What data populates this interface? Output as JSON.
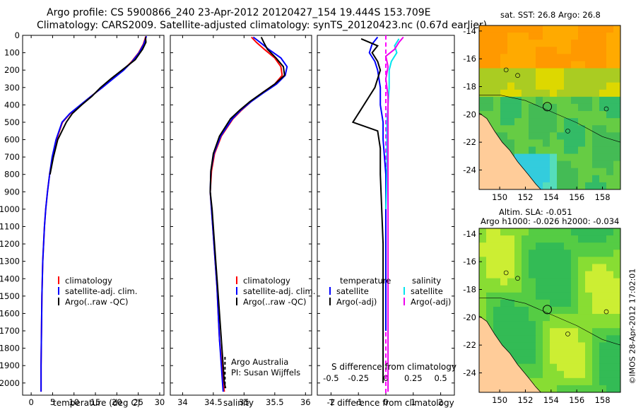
{
  "header": {
    "line1": "Argo profile: CS 5900866_240 23-Apr-2012 20120427_154 19.444S 153.709E",
    "line2": "Climatology: CARS2009. Satellite-adjusted climatology: synTS_20120423.nc (0.67d earlier)"
  },
  "colors": {
    "climatology": "#ff0000",
    "satellite": "#0000ff",
    "argo": "#000000",
    "sal_satellite": "#00e5ee",
    "sal_argo": "#ee00ee"
  },
  "depth_axis": {
    "ticks": [
      "0",
      "100",
      "200",
      "300",
      "400",
      "500",
      "600",
      "700",
      "800",
      "900",
      "1000",
      "1100",
      "1200",
      "1300",
      "1400",
      "1500",
      "1600",
      "1700",
      "1800",
      "1900",
      "2000"
    ]
  },
  "chart_data": [
    {
      "type": "line",
      "id": "temperature",
      "xlabel": "temperature (deg C)",
      "ylabel": "depth",
      "xlim": [
        -2,
        31
      ],
      "ylim": [
        2070,
        0
      ],
      "xticks": [
        "0",
        "5",
        "10",
        "15",
        "20",
        "25",
        "30"
      ],
      "legend": [
        "climatology",
        "satellite-adj. clim.",
        "Argo(..raw -QC)"
      ],
      "series": [
        {
          "name": "climatology",
          "x": [
            26.8,
            26.2,
            25.1,
            23.5,
            21.5,
            19.0,
            16.6,
            14.0,
            11.6,
            9.1,
            7.3,
            5.9,
            5.0,
            4.3,
            3.8,
            3.4,
            3.1,
            2.9,
            2.7,
            2.6,
            2.5,
            2.4,
            2.3,
            2.3
          ],
          "y": [
            5,
            50,
            100,
            150,
            200,
            250,
            300,
            350,
            400,
            450,
            500,
            600,
            700,
            800,
            900,
            1000,
            1100,
            1200,
            1300,
            1400,
            1500,
            1700,
            1900,
            2050
          ]
        },
        {
          "name": "satellite-adj. clim.",
          "x": [
            26.9,
            26.3,
            25.2,
            23.6,
            21.6,
            19.1,
            16.6,
            14.0,
            11.5,
            9.0,
            7.2,
            5.8,
            4.9,
            4.3,
            3.8,
            3.4,
            3.1,
            2.9,
            2.7,
            2.6,
            2.5,
            2.4,
            2.3,
            2.3
          ],
          "y": [
            5,
            50,
            100,
            150,
            200,
            250,
            300,
            350,
            400,
            450,
            500,
            600,
            700,
            800,
            900,
            1000,
            1100,
            1200,
            1300,
            1400,
            1500,
            1700,
            1900,
            2050
          ]
        },
        {
          "name": "Argo(..raw -QC)",
          "x": [
            26.7,
            26.8,
            26.0,
            24.3,
            21.2,
            18.6,
            16.2,
            14.2,
            11.8,
            9.6,
            8.2,
            6.2,
            5.2,
            4.4
          ],
          "y": [
            10,
            40,
            80,
            140,
            200,
            250,
            300,
            350,
            400,
            450,
            500,
            600,
            700,
            800
          ]
        }
      ]
    },
    {
      "type": "line",
      "id": "salinity",
      "xlabel": "salinity",
      "xlim": [
        33.8,
        36.1
      ],
      "ylim": [
        2070,
        0
      ],
      "xticks": [
        "34",
        "34.5",
        "35",
        "35.5",
        "36"
      ],
      "legend": [
        "climatology",
        "satellite-adj. clim.",
        "Argo(..raw -QC)"
      ],
      "annotations": [
        "Argo Australia",
        "PI: Susan Wijffels"
      ],
      "series": [
        {
          "name": "climatology",
          "x": [
            35.12,
            35.2,
            35.33,
            35.5,
            35.6,
            35.62,
            35.5,
            35.3,
            35.12,
            34.96,
            34.82,
            34.63,
            34.52,
            34.47,
            34.45,
            34.47,
            34.5,
            34.53,
            34.56,
            34.58,
            34.6,
            34.64,
            34.66,
            34.68
          ],
          "y": [
            10,
            40,
            80,
            130,
            180,
            230,
            280,
            330,
            380,
            430,
            480,
            580,
            680,
            780,
            900,
            1000,
            1150,
            1300,
            1450,
            1600,
            1750,
            1900,
            2000,
            2050
          ]
        },
        {
          "name": "satellite-adj. clim.",
          "x": [
            35.15,
            35.26,
            35.4,
            35.6,
            35.7,
            35.67,
            35.53,
            35.32,
            35.12,
            34.95,
            34.81,
            34.62,
            34.51,
            34.46,
            34.45,
            34.47,
            34.5,
            34.53,
            34.56,
            34.58,
            34.6,
            34.63,
            34.65,
            34.66
          ],
          "y": [
            10,
            40,
            80,
            130,
            180,
            230,
            280,
            330,
            380,
            430,
            480,
            580,
            680,
            780,
            900,
            1000,
            1150,
            1300,
            1450,
            1600,
            1750,
            1900,
            2000,
            2050
          ]
        },
        {
          "name": "Argo(..raw -QC)",
          "x": [
            35.28,
            35.32,
            35.38,
            35.52,
            35.64,
            35.66,
            35.5,
            35.3,
            35.1,
            34.93,
            34.78,
            34.6,
            34.5,
            34.46,
            34.45,
            34.48,
            34.51,
            34.54,
            34.57,
            34.6,
            34.63,
            34.66,
            34.68,
            34.7
          ],
          "y": [
            10,
            40,
            80,
            130,
            180,
            230,
            280,
            330,
            380,
            430,
            480,
            580,
            680,
            780,
            900,
            1000,
            1150,
            1300,
            1450,
            1600,
            1750,
            1900,
            2000,
            2030
          ]
        }
      ]
    },
    {
      "type": "line",
      "id": "difference",
      "xlabel": "T difference from climatology",
      "xlabel_top": "S difference from climatology",
      "xlim": [
        -2.5,
        2.5
      ],
      "ylim": [
        2070,
        0
      ],
      "xticks": [
        "-2",
        "-1",
        "0",
        "1",
        "2"
      ],
      "xticks_top": [
        "-0.5",
        "-0.25",
        "0",
        "0.25",
        "0.5"
      ],
      "legend_temperature": [
        "temperature",
        "satellite",
        "Argo(-adj)"
      ],
      "legend_salinity": [
        "salinity",
        "satellite",
        "Argo(-adj)"
      ],
      "series": [
        {
          "name": "temperature satellite",
          "x": [
            -0.3,
            -0.5,
            -0.6,
            -0.4,
            -0.3,
            -0.2,
            -0.2,
            -0.1,
            -0.1,
            0,
            0,
            0
          ],
          "y": [
            10,
            50,
            100,
            150,
            200,
            300,
            400,
            500,
            600,
            800,
            1200,
            1700
          ]
        },
        {
          "name": "temperature Argo(-adj)",
          "x": [
            -0.9,
            -0.3,
            -0.5,
            -0.3,
            -0.2,
            -0.4,
            -1.2,
            -0.3,
            -0.2,
            -0.2,
            -0.1,
            -0.1,
            -0.1
          ],
          "y": [
            20,
            60,
            100,
            150,
            200,
            300,
            500,
            550,
            650,
            800,
            1200,
            1600,
            2000
          ]
        },
        {
          "name": "salinity satellite",
          "x": [
            0.12,
            0.08,
            0.1,
            0.05,
            0.03,
            0.03,
            0.02,
            0.01,
            0.01,
            0.01,
            0.0
          ],
          "y": [
            20,
            60,
            100,
            150,
            200,
            300,
            400,
            500,
            600,
            800,
            1000
          ]
        },
        {
          "name": "salinity Argo(-adj)",
          "x": [
            0.16,
            0.12,
            0.08,
            0.0,
            0.02,
            0.0,
            0.02,
            0.02,
            0.02,
            0.02,
            0.02,
            0.02,
            0.02,
            0.02
          ],
          "y": [
            10,
            40,
            80,
            120,
            180,
            250,
            350,
            450,
            550,
            650,
            800,
            1200,
            1700,
            2050
          ]
        }
      ]
    },
    {
      "type": "heatmap",
      "id": "sst_map",
      "title": "sat. SST: 26.8  Argo: 26.8",
      "xlim": [
        148.4,
        159.4
      ],
      "ylim": [
        -25.4,
        -13.6
      ],
      "xticks": [
        "150",
        "152",
        "154",
        "156",
        "158"
      ],
      "yticks": [
        "-14",
        "-16",
        "-18",
        "-20",
        "-22",
        "-24"
      ],
      "argo_position": {
        "lon": 153.709,
        "lat": -19.444
      }
    },
    {
      "type": "heatmap",
      "id": "sla_map",
      "title": "Altim. SLA: -0.051",
      "subtitle": "Argo h1000: -0.026  h2000: -0.034",
      "xlim": [
        148.4,
        159.4
      ],
      "ylim": [
        -25.4,
        -13.6
      ],
      "xticks": [
        "150",
        "152",
        "154",
        "156",
        "158"
      ],
      "yticks": [
        "-14",
        "-16",
        "-18",
        "-20",
        "-22",
        "-24"
      ],
      "argo_position": {
        "lon": 153.709,
        "lat": -19.444
      }
    }
  ],
  "watermark": "©IMOS 28-Apr-2012 17:02:01"
}
